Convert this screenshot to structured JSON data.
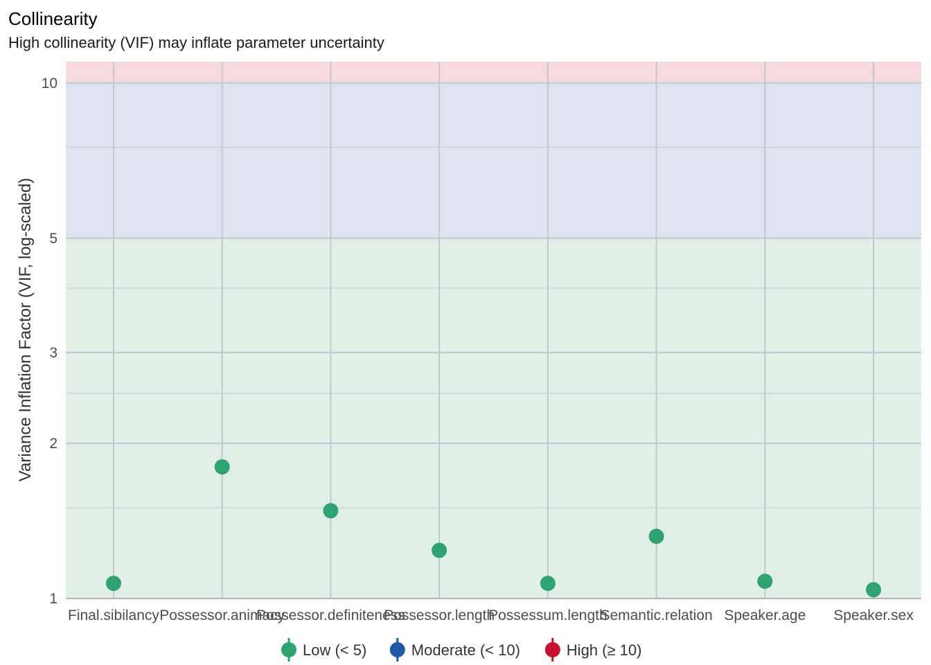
{
  "chart_data": {
    "type": "scatter",
    "title": "Collinearity",
    "subtitle": "High collinearity (VIF) may inflate parameter uncertainty",
    "xlabel": "",
    "ylabel": "Variance Inflation Factor (VIF, log-scaled)",
    "y_scale": "log",
    "ylim": [
      1,
      11
    ],
    "y_ticks": [
      1,
      2,
      3,
      5,
      10
    ],
    "y_minor_ticks": [
      1.5,
      2.5,
      4,
      7.5
    ],
    "grid": true,
    "legend_position": "bottom",
    "categories": [
      "Final.sibilancy",
      "Possessor.animacy",
      "Possessor.definiteness",
      "Possessor.length",
      "Possessum.length",
      "Semantic.relation",
      "Speaker.age",
      "Speaker.sex"
    ],
    "x_tick_labels": [
      "Final.sibilancy",
      "Possessor.animacy",
      "Possessor.definiteness",
      "Possessor.length",
      "Possessum.length",
      "Semantic.relation",
      "Speaker.age",
      "Speaker.sex"
    ],
    "series": [
      {
        "name": "Low (< 5)",
        "color": "#2ea372",
        "values": [
          1.07,
          1.8,
          1.48,
          1.24,
          1.07,
          1.32,
          1.08,
          1.04
        ]
      }
    ],
    "zones": [
      {
        "name": "low",
        "from": 1,
        "to": 5,
        "color": "#e0f0e9"
      },
      {
        "name": "moderate",
        "from": 5,
        "to": 10,
        "color": "#dfe3ef"
      },
      {
        "name": "high",
        "from": 10,
        "to": 11,
        "color": "#f6dadf"
      }
    ],
    "legend": [
      {
        "label": "Low (< 5)",
        "color": "#2ea372"
      },
      {
        "label": "Moderate (< 10)",
        "color": "#1a5aa6"
      },
      {
        "label": "High (≥ 10)",
        "color": "#c8102e"
      }
    ]
  }
}
